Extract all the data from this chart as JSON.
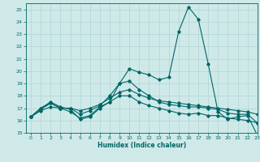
{
  "title": "",
  "xlabel": "Humidex (Indice chaleur)",
  "ylabel": "",
  "xlim": [
    -0.5,
    23
  ],
  "ylim": [
    15,
    25.5
  ],
  "yticks": [
    15,
    16,
    17,
    18,
    19,
    20,
    21,
    22,
    23,
    24,
    25
  ],
  "xticks": [
    0,
    1,
    2,
    3,
    4,
    5,
    6,
    7,
    8,
    9,
    10,
    11,
    12,
    13,
    14,
    15,
    16,
    17,
    18,
    19,
    20,
    21,
    22,
    23
  ],
  "bg_color": "#cfe9e9",
  "grid_color": "#b0d4d4",
  "line_color": "#006666",
  "series": [
    [
      16.3,
      17.0,
      17.5,
      17.1,
      16.9,
      16.1,
      16.3,
      17.0,
      17.5,
      19.0,
      20.2,
      19.9,
      19.7,
      19.3,
      19.5,
      23.2,
      25.2,
      24.2,
      20.6,
      16.7,
      16.1,
      16.3,
      16.4,
      14.8
    ],
    [
      16.3,
      17.0,
      17.4,
      17.0,
      17.0,
      16.8,
      17.0,
      17.3,
      17.8,
      18.3,
      18.5,
      18.1,
      17.8,
      17.6,
      17.5,
      17.4,
      17.3,
      17.2,
      17.1,
      17.0,
      16.9,
      16.8,
      16.7,
      16.5
    ],
    [
      16.3,
      16.8,
      17.1,
      17.0,
      16.7,
      16.2,
      16.4,
      17.1,
      17.5,
      18.0,
      18.0,
      17.5,
      17.2,
      17.0,
      16.8,
      16.6,
      16.5,
      16.6,
      16.4,
      16.4,
      16.2,
      16.1,
      16.0,
      15.8
    ],
    [
      16.3,
      16.9,
      17.4,
      17.0,
      17.0,
      16.5,
      16.8,
      17.2,
      18.0,
      19.0,
      19.2,
      18.5,
      18.0,
      17.5,
      17.3,
      17.2,
      17.1,
      17.1,
      17.0,
      16.9,
      16.6,
      16.5,
      16.5,
      15.8
    ]
  ]
}
